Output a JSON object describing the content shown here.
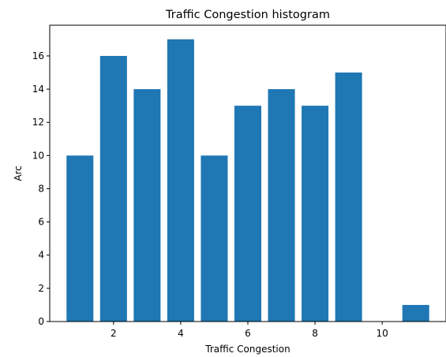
{
  "chart_data": {
    "type": "bar",
    "title": "Traffic Congestion histogram",
    "xlabel": "Traffic Congestion",
    "ylabel": "Arc",
    "x": [
      1,
      2,
      3,
      4,
      5,
      6,
      7,
      8,
      9,
      10,
      11
    ],
    "values": [
      10,
      16,
      14,
      17,
      10,
      13,
      14,
      13,
      15,
      0,
      1
    ],
    "bar_width": 0.8,
    "xlim": [
      0.1,
      11.9
    ],
    "ylim": [
      0,
      17.85
    ],
    "xticks": [
      2,
      4,
      6,
      8,
      10
    ],
    "yticks": [
      0,
      2,
      4,
      6,
      8,
      10,
      12,
      14,
      16
    ],
    "bar_color": "#1f77b4",
    "grid": false,
    "legend": "none"
  }
}
